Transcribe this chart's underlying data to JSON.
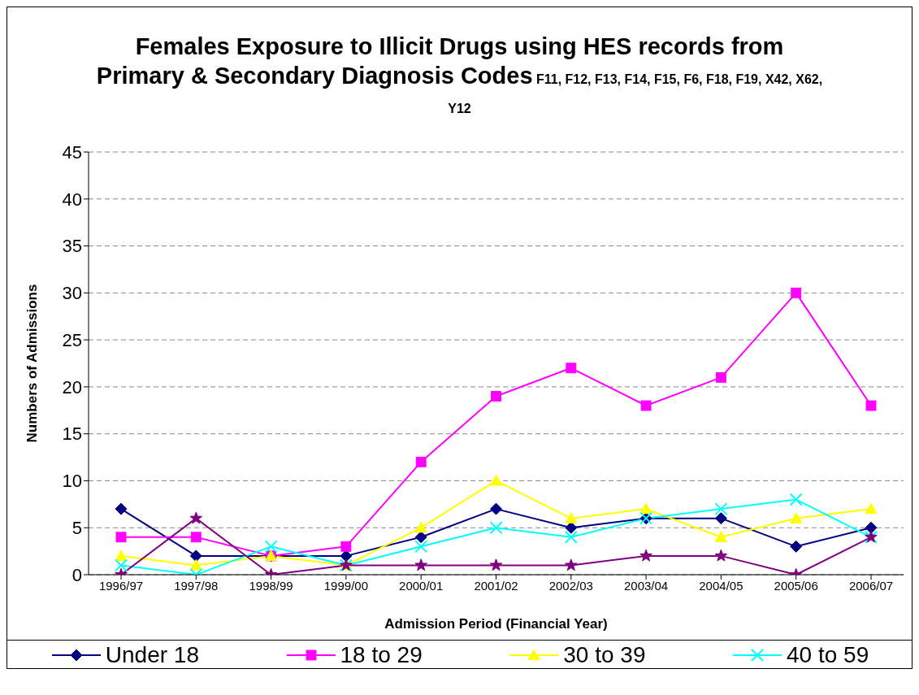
{
  "chart_data": {
    "type": "line",
    "title": "Females Exposure to Illicit Drugs using HES records from Primary & Secondary Diagnosis Codes",
    "subtitle": "F11, F12, F13, F14, F15, F6, F18, F19, X42, X62, Y12",
    "xlabel": "Admission Period (Financial Year)",
    "ylabel": "Numbers of Admissions",
    "categories": [
      "1996/97",
      "1997/98",
      "1998/99",
      "1999/00",
      "2000/01",
      "2001/02",
      "2002/03",
      "2003/04",
      "2004/05",
      "2005/06",
      "2006/07"
    ],
    "series": [
      {
        "name": "Under 18",
        "color": "#000080",
        "marker": "diamond",
        "values": [
          7,
          2,
          2,
          2,
          4,
          7,
          5,
          6,
          6,
          3,
          5
        ]
      },
      {
        "name": "18 to 29",
        "color": "#ff00ff",
        "marker": "square",
        "values": [
          4,
          4,
          2,
          3,
          12,
          19,
          22,
          18,
          21,
          30,
          18
        ]
      },
      {
        "name": "30 to 39",
        "color": "#ffff00",
        "marker": "triangle",
        "values": [
          2,
          1,
          2,
          1,
          5,
          10,
          6,
          7,
          4,
          6,
          7
        ]
      },
      {
        "name": "40 to 59",
        "color": "#00ffff",
        "marker": "cross",
        "values": [
          1,
          0,
          3,
          1,
          3,
          5,
          4,
          6,
          7,
          8,
          4
        ]
      },
      {
        "color": "#800080",
        "marker": "star",
        "values": [
          0,
          6,
          0,
          1,
          1,
          1,
          1,
          2,
          2,
          0,
          4
        ]
      }
    ],
    "ylim": [
      0,
      45
    ],
    "yticks": [
      0,
      5,
      10,
      15,
      20,
      25,
      30,
      35,
      40,
      45
    ],
    "grid": "y",
    "legend": "bottom",
    "line_style": "solid"
  }
}
